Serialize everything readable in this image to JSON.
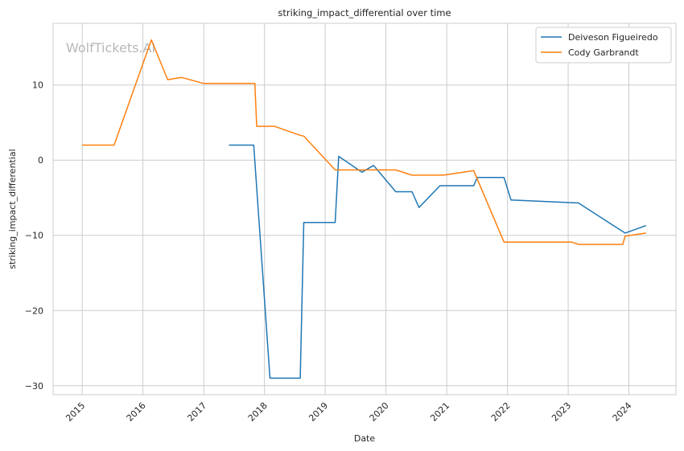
{
  "chart_data": {
    "type": "line",
    "title": "striking_impact_differential over time",
    "xlabel": "Date",
    "ylabel": "striking_impact_differential",
    "watermark": "WolfTickets.AI",
    "x_ticks": [
      "2015",
      "2016",
      "2017",
      "2018",
      "2019",
      "2020",
      "2021",
      "2022",
      "2023",
      "2024"
    ],
    "y_ticks": [
      -30,
      -20,
      -10,
      0,
      10
    ],
    "xlim": [
      "2014-07-10",
      "2024-10-10"
    ],
    "ylim": [
      -31.2,
      18.2
    ],
    "grid": true,
    "legend_position": "top-right",
    "series": [
      {
        "name": "Deiveson Figueiredo",
        "color": "#1f77b4",
        "points": [
          [
            "2017-06-01",
            2.0
          ],
          [
            "2017-10-28",
            2.0
          ],
          [
            "2018-02-03",
            -29.0
          ],
          [
            "2018-08-04",
            -29.0
          ],
          [
            "2018-08-25",
            -8.3
          ],
          [
            "2019-03-02",
            -8.3
          ],
          [
            "2019-03-23",
            0.5
          ],
          [
            "2019-08-10",
            -1.6
          ],
          [
            "2019-10-19",
            -0.7
          ],
          [
            "2020-02-29",
            -4.2
          ],
          [
            "2020-06-06",
            -4.2
          ],
          [
            "2020-07-18",
            -6.3
          ],
          [
            "2020-11-21",
            -3.4
          ],
          [
            "2020-12-12",
            -3.4
          ],
          [
            "2021-06-12",
            -3.4
          ],
          [
            "2021-07-03",
            -2.3
          ],
          [
            "2021-12-11",
            -2.3
          ],
          [
            "2022-01-22",
            -5.3
          ],
          [
            "2023-03-04",
            -5.7
          ],
          [
            "2023-12-09",
            -9.7
          ],
          [
            "2024-04-13",
            -8.7
          ]
        ]
      },
      {
        "name": "Cody Garbrandt",
        "color": "#ff7f0e",
        "points": [
          [
            "2015-01-01",
            2.0
          ],
          [
            "2015-07-12",
            2.0
          ],
          [
            "2016-02-21",
            16.0
          ],
          [
            "2016-05-29",
            10.7
          ],
          [
            "2016-08-20",
            11.0
          ],
          [
            "2016-12-31",
            10.2
          ],
          [
            "2017-11-04",
            10.2
          ],
          [
            "2017-11-15",
            4.5
          ],
          [
            "2018-03-01",
            4.5
          ],
          [
            "2018-08-04",
            3.3
          ],
          [
            "2018-08-25",
            3.2
          ],
          [
            "2019-03-02",
            -1.3
          ],
          [
            "2019-12-14",
            -1.3
          ],
          [
            "2020-02-29",
            -1.3
          ],
          [
            "2020-06-06",
            -2.0
          ],
          [
            "2020-12-12",
            -2.0
          ],
          [
            "2021-06-12",
            -1.4
          ],
          [
            "2021-12-11",
            -10.9
          ],
          [
            "2023-01-21",
            -10.9
          ],
          [
            "2023-03-04",
            -11.2
          ],
          [
            "2023-11-25",
            -11.2
          ],
          [
            "2023-12-09",
            -10.1
          ],
          [
            "2024-04-13",
            -9.7
          ]
        ]
      }
    ]
  }
}
